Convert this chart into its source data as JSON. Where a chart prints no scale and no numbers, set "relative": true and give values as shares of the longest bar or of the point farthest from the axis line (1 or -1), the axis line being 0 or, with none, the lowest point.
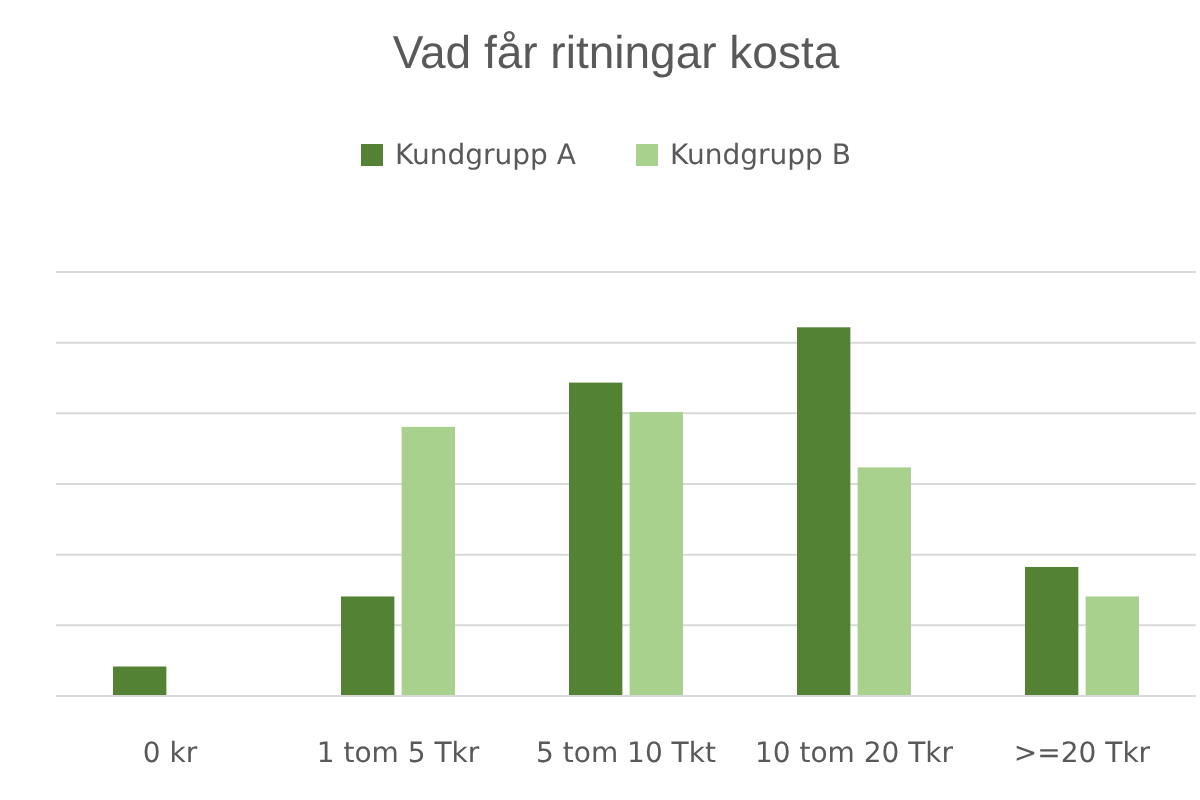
{
  "chart_data": {
    "type": "bar",
    "title": "Vad får ritningar kosta",
    "relative": true,
    "grid": true,
    "legend": "top",
    "categories": [
      "0 kr",
      "1 tom 5 Tkr",
      "5 tom 10 Tkt",
      "10 tom 20 Tkr",
      ">=20 Tkr"
    ],
    "series": [
      {
        "name": "Kundgrupp A",
        "color": "#548235",
        "values": [
          0.08,
          0.27,
          0.85,
          1,
          0.35
        ]
      },
      {
        "name": "Kundgrupp B",
        "color": "#a9d18e",
        "values": [
          0,
          0.73,
          0.77,
          0.62,
          0.27
        ]
      }
    ]
  }
}
